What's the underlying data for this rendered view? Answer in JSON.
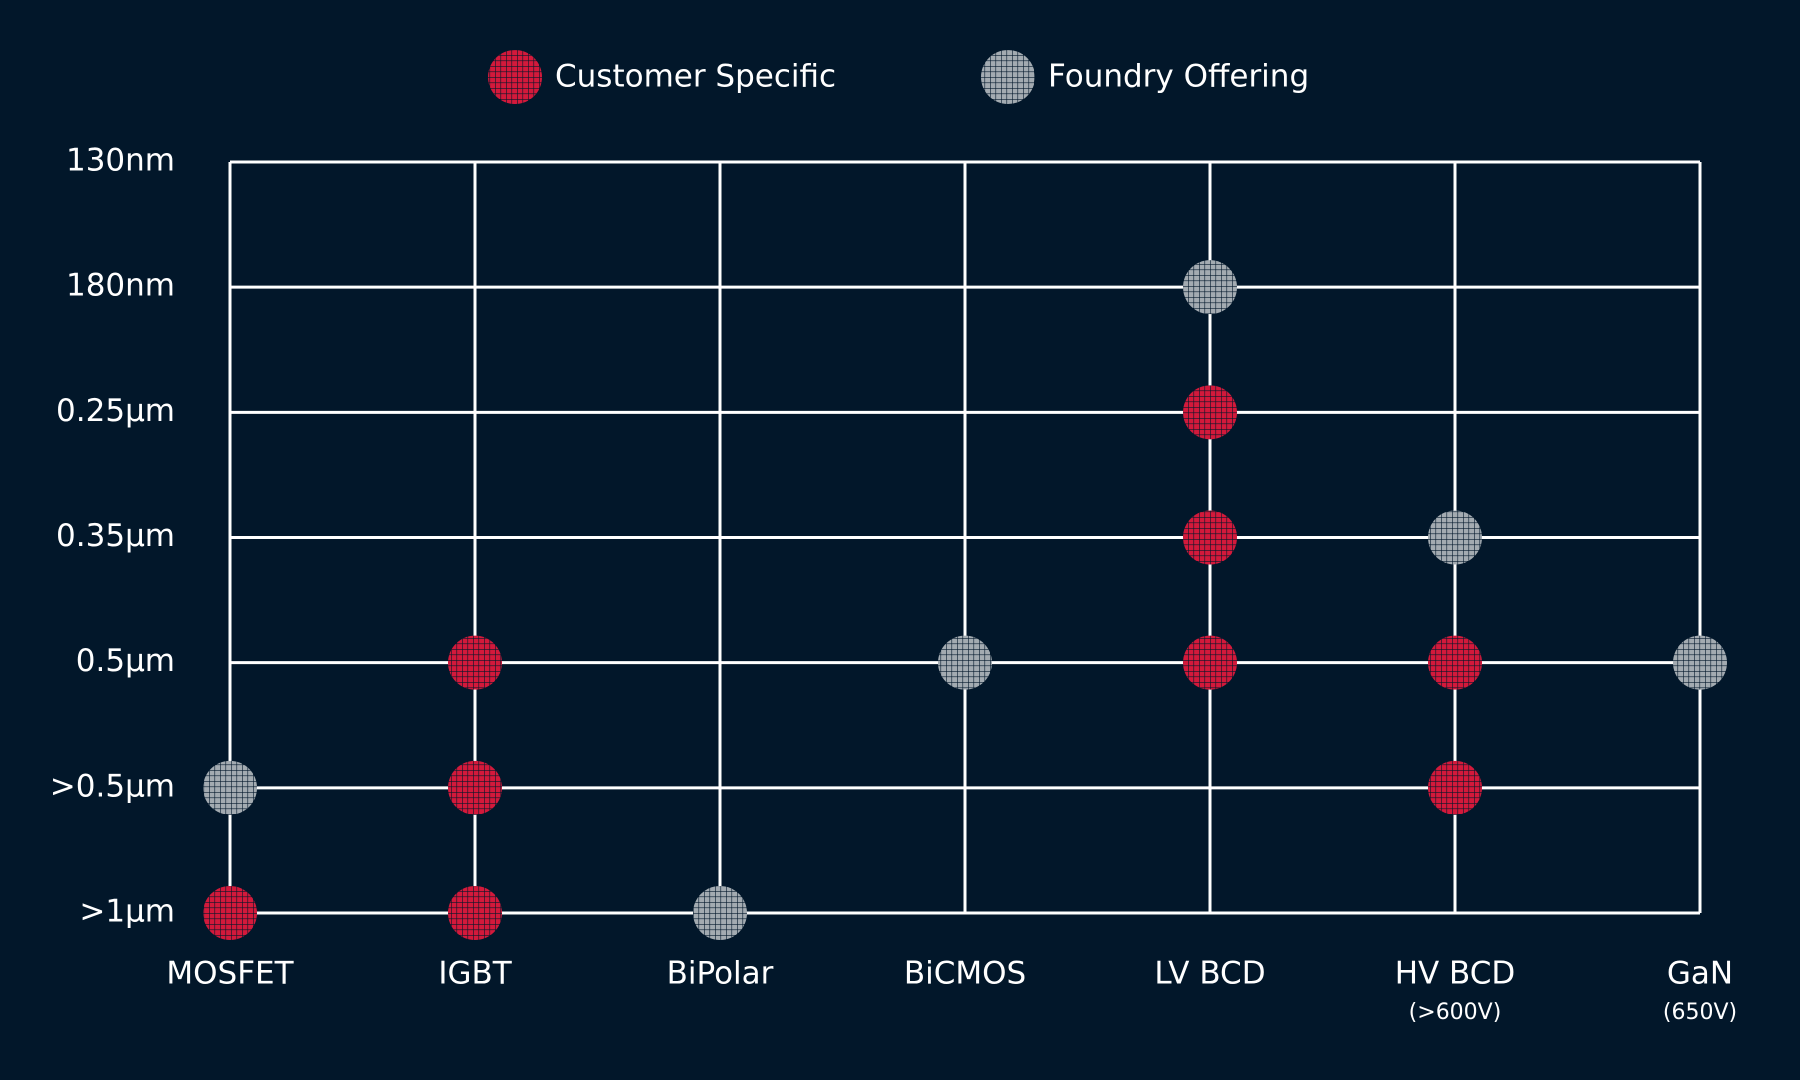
{
  "chart_data": {
    "type": "scatter",
    "categories": [
      "MOSFET",
      "IGBT",
      "BiPolar",
      "BiCMOS",
      "LV BCD",
      "HV BCD",
      "GaN"
    ],
    "category_sublabels": [
      null,
      null,
      null,
      null,
      null,
      "(>600V)",
      "(650V)"
    ],
    "y_categories": [
      ">1μm",
      ">0.5μm",
      "0.5μm",
      "0.35μm",
      "0.25μm",
      "180nm",
      "130nm"
    ],
    "grid": true,
    "legend": "top",
    "series": [
      {
        "name": "Customer Specific",
        "color": "#d3193b",
        "x": [
          "MOSFET",
          "IGBT",
          "IGBT",
          "IGBT",
          "LV BCD",
          "LV BCD",
          "LV BCD",
          "HV BCD",
          "HV BCD"
        ],
        "y": [
          ">1μm",
          "0.5μm",
          ">0.5μm",
          ">1μm",
          "0.25μm",
          "0.35μm",
          "0.5μm",
          "0.5μm",
          ">0.5μm"
        ]
      },
      {
        "name": "Foundry Offering",
        "color": "#a3abb1",
        "x": [
          "MOSFET",
          "BiPolar",
          "BiCMOS",
          "LV BCD",
          "HV BCD",
          "GaN"
        ],
        "y": [
          ">0.5μm",
          ">1μm",
          "0.5μm",
          "180nm",
          "0.35μm",
          "0.5μm"
        ]
      }
    ]
  }
}
